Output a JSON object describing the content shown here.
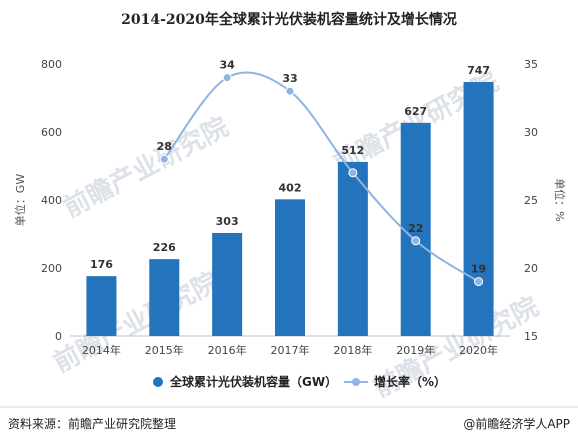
{
  "chart_data": {
    "type": "bar+line",
    "title": "2014-2020年全球累计光伏装机容量统计及增长情况",
    "categories": [
      "2014年",
      "2015年",
      "2016年",
      "2017年",
      "2018年",
      "2019年",
      "2020年"
    ],
    "series": [
      {
        "name": "全球累计光伏装机容量（GW）",
        "type": "bar",
        "axis": "left",
        "color": "#2473bd",
        "values": [
          176,
          226,
          303,
          402,
          512,
          627,
          747
        ]
      },
      {
        "name": "增长率（%）",
        "type": "line",
        "axis": "right",
        "color": "#8db4e2",
        "values": [
          null,
          28,
          34,
          33,
          27,
          22,
          19
        ],
        "labels": [
          "",
          "28",
          "34",
          "33",
          "",
          "22",
          "19"
        ]
      }
    ],
    "left_axis": {
      "label": "单位：GW",
      "ylim": [
        0,
        800
      ],
      "ticks": [
        0,
        200,
        400,
        600,
        800
      ]
    },
    "right_axis": {
      "label": "单位：%",
      "ylim": [
        15,
        35
      ],
      "ticks": [
        15,
        20,
        25,
        30,
        35
      ]
    },
    "grid": false,
    "legend_position": "bottom"
  },
  "watermark": {
    "text": "前瞻产业研究院"
  },
  "footer": {
    "source": "资料来源：前瞻产业研究院整理",
    "brand": "@前瞻经济学人APP"
  }
}
